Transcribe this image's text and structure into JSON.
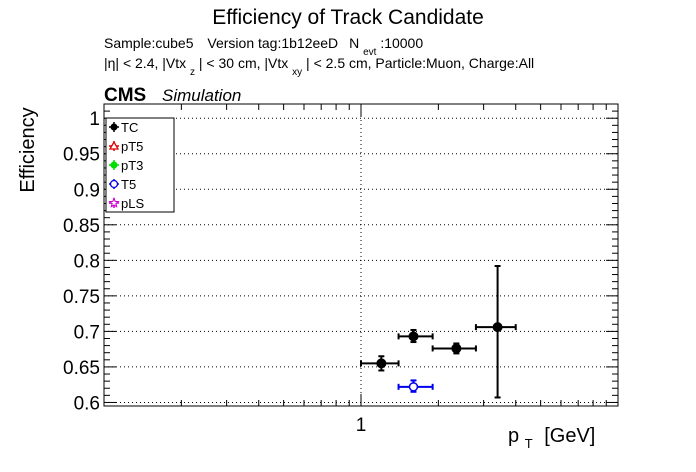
{
  "chart_data": {
    "type": "scatter",
    "title": "Efficiency of Track Candidate",
    "info_line1": {
      "sample": "Sample:cube5",
      "version": "Version tag:1b12eeD",
      "n_symbol": "N",
      "n_sub": "evt",
      "n_value": ":10000"
    },
    "info_line2": {
      "eta": "|η| < 2.4, |Vtx",
      "vtxz_sub": "z",
      "mid": "| < 30 cm, |Vtx",
      "vtxxy_sub": "xy",
      "tail": "| < 2.5 cm, Particle:Muon, Charge:All"
    },
    "cms_label": "CMS",
    "sim_label": "Simulation",
    "ylabel": "Efficiency",
    "xlabel": {
      "main": "p",
      "sub": "T",
      "unit": "[GeV]"
    },
    "x_scale": "log",
    "xlim": [
      0.1,
      10
    ],
    "ylim": [
      0.595,
      1.02
    ],
    "x_tick_labels": [
      {
        "value": 1,
        "label": "1"
      }
    ],
    "y_ticks": [
      {
        "value": 0.6,
        "label": "0.6"
      },
      {
        "value": 0.65,
        "label": "0.65"
      },
      {
        "value": 0.7,
        "label": "0.7"
      },
      {
        "value": 0.75,
        "label": "0.75"
      },
      {
        "value": 0.8,
        "label": "0.8"
      },
      {
        "value": 0.85,
        "label": "0.85"
      },
      {
        "value": 0.9,
        "label": "0.9"
      },
      {
        "value": 0.95,
        "label": "0.95"
      },
      {
        "value": 1,
        "label": "1"
      }
    ],
    "grid": true,
    "legend_position": "top-left",
    "series": [
      {
        "name": "TC",
        "color": "#000000",
        "marker": "filled-circle",
        "points": [
          {
            "x": 1.2,
            "xlo": 1.0,
            "xhi": 1.4,
            "y": 0.655,
            "ylo": 0.645,
            "yhi": 0.665
          },
          {
            "x": 1.6,
            "xlo": 1.4,
            "xhi": 1.9,
            "y": 0.693,
            "ylo": 0.685,
            "yhi": 0.702
          },
          {
            "x": 2.35,
            "xlo": 1.9,
            "xhi": 2.8,
            "y": 0.676,
            "ylo": 0.669,
            "yhi": 0.683
          },
          {
            "x": 3.4,
            "xlo": 2.8,
            "xhi": 4.0,
            "y": 0.706,
            "ylo": 0.607,
            "yhi": 0.792
          }
        ]
      },
      {
        "name": "pT5",
        "color": "#e00000",
        "marker": "open-triangle",
        "points": []
      },
      {
        "name": "pT3",
        "color": "#00dd00",
        "marker": "filled-circle",
        "points": []
      },
      {
        "name": "T5",
        "color": "#0000ee",
        "marker": "open-circle",
        "points": [
          {
            "x": 1.6,
            "xlo": 1.4,
            "xhi": 1.9,
            "y": 0.622,
            "ylo": 0.615,
            "yhi": 0.631
          }
        ]
      },
      {
        "name": "pLS",
        "color": "#d000d0",
        "marker": "open-star",
        "points": []
      }
    ]
  }
}
